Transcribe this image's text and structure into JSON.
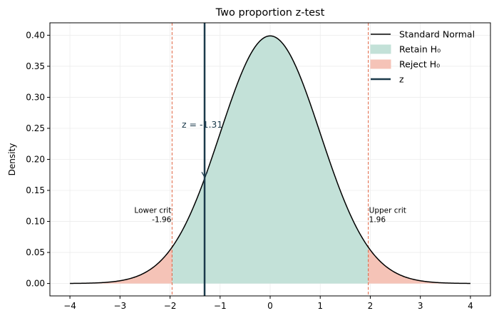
{
  "chart_data": {
    "type": "area",
    "title": "Two proportion z-test",
    "xlabel": "",
    "ylabel": "Density",
    "xlim": [
      -4.4,
      4.4
    ],
    "ylim": [
      -0.02,
      0.42
    ],
    "x_ticks": [
      -4,
      -3,
      -2,
      -1,
      0,
      1,
      2,
      3,
      4
    ],
    "x_tick_labels": [
      "−4",
      "−3",
      "−2",
      "−1",
      "0",
      "1",
      "2",
      "3",
      "4"
    ],
    "y_ticks": [
      0.0,
      0.05,
      0.1,
      0.15,
      0.2,
      0.25,
      0.3,
      0.35,
      0.4
    ],
    "y_tick_labels": [
      "0.00",
      "0.05",
      "0.10",
      "0.15",
      "0.20",
      "0.25",
      "0.30",
      "0.35",
      "0.40"
    ],
    "grid": true,
    "legend_position": "top-right",
    "series": [
      {
        "name": "Standard Normal",
        "kind": "line",
        "x_range": [
          -4,
          4
        ],
        "function": "standard normal pdf",
        "color": "#000000"
      },
      {
        "name": "Retain H₀",
        "kind": "fill",
        "x_range": [
          -1.96,
          1.96
        ],
        "color": "#c3e1d8"
      },
      {
        "name": "Reject H₀",
        "kind": "fill",
        "x_ranges": [
          [
            -4,
            -1.96
          ],
          [
            1.96,
            4
          ]
        ],
        "color": "#f5c3b7"
      },
      {
        "name": "z",
        "kind": "vline",
        "x": -1.31,
        "color": "#1b3a4b"
      }
    ],
    "critical_values": {
      "lower": -1.96,
      "upper": 1.96,
      "color": "#e0623f"
    },
    "annotations": {
      "lower_crit": "Lower crit\n-1.96",
      "upper_crit": "Upper crit\n1.96",
      "z_label": "z = -1.31"
    },
    "colors": {
      "curve": "#000000",
      "retain": "#c3e1d8",
      "reject": "#f5c3b7",
      "crit_line": "#e0623f",
      "z_line": "#1b3a4b"
    }
  }
}
